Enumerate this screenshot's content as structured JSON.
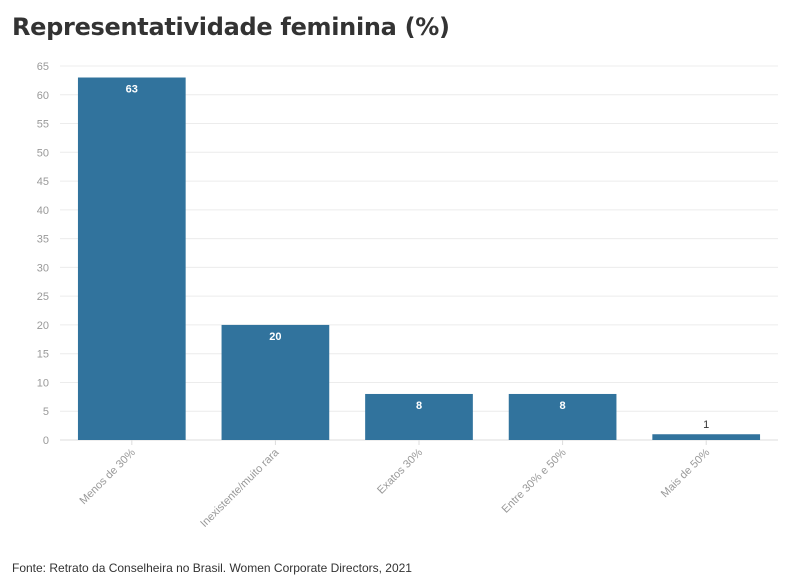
{
  "chart_data": {
    "type": "bar",
    "title": "Representatividade feminina (%)",
    "source": "Fonte: Retrato da Conselheira no Brasil. Women Corporate Directors, 2021",
    "categories": [
      "Menos de 30%",
      "Inexistente/muito rara",
      "Exatos 30%",
      "Entre 30% e 50%",
      "Mais de 50%"
    ],
    "values": [
      63,
      20,
      8,
      8,
      1
    ],
    "data_labels": [
      "63",
      "20",
      "8",
      "8",
      "1"
    ],
    "y_ticks": [
      "0",
      "5",
      "10",
      "15",
      "20",
      "25",
      "30",
      "35",
      "40",
      "45",
      "50",
      "55",
      "60",
      "65"
    ],
    "ylim": [
      0,
      65
    ],
    "grid": true,
    "bar_color": "#31739d"
  }
}
